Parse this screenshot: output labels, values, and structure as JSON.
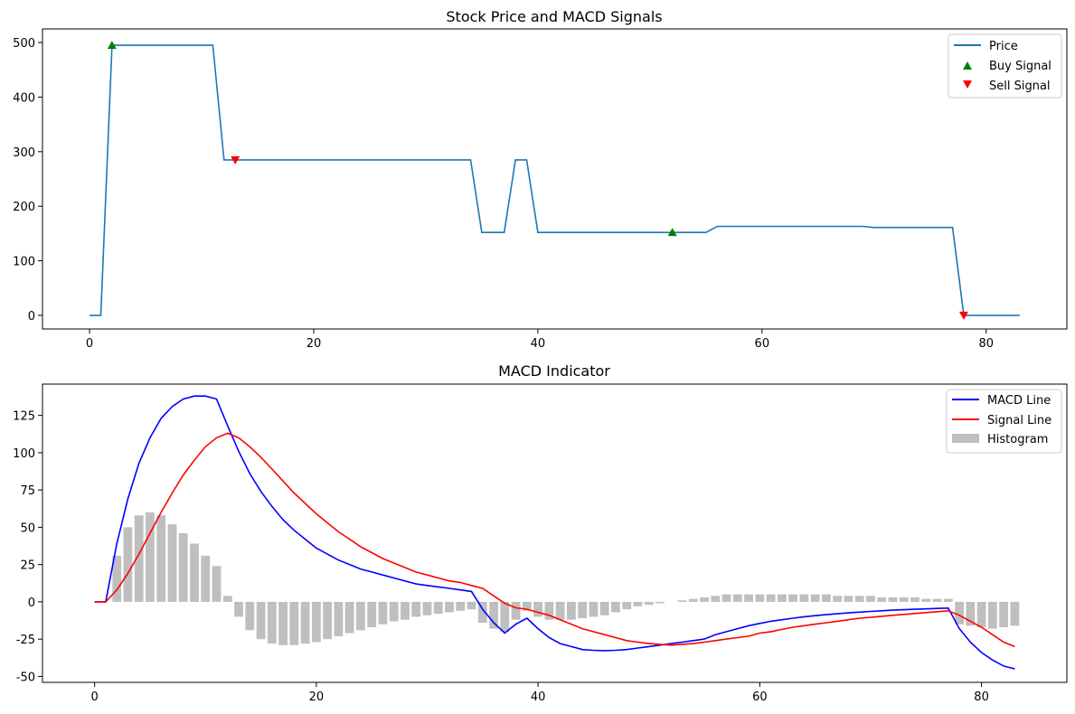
{
  "chart_data": [
    {
      "type": "line",
      "title": "Stock Price and MACD Signals",
      "xlabel": "",
      "ylabel": "",
      "xlim": [
        -4.2,
        87.2
      ],
      "ylim": [
        -25,
        525
      ],
      "xticks": [
        0,
        20,
        40,
        60,
        80
      ],
      "yticks": [
        0,
        100,
        200,
        300,
        400,
        500
      ],
      "grid": false,
      "legend_position": "top-right",
      "legend": [
        "Price",
        "Buy Signal",
        "Sell Signal"
      ],
      "colors": {
        "price": "#1f77b4",
        "buy": "#008000",
        "sell": "#ff0000"
      },
      "series": [
        {
          "name": "Price",
          "x": [
            0,
            1,
            2,
            3,
            4,
            5,
            6,
            7,
            8,
            9,
            10,
            11,
            12,
            13,
            14,
            15,
            16,
            17,
            18,
            19,
            20,
            21,
            22,
            23,
            24,
            25,
            26,
            27,
            28,
            29,
            30,
            31,
            32,
            33,
            34,
            35,
            36,
            37,
            38,
            39,
            40,
            41,
            42,
            43,
            44,
            45,
            46,
            47,
            48,
            49,
            50,
            51,
            52,
            53,
            54,
            55,
            56,
            57,
            58,
            59,
            60,
            61,
            62,
            63,
            64,
            65,
            66,
            67,
            68,
            69,
            70,
            71,
            72,
            73,
            74,
            75,
            76,
            77,
            78,
            79,
            80,
            81,
            82,
            83
          ],
          "y": [
            0,
            0,
            495,
            495,
            495,
            495,
            495,
            495,
            495,
            495,
            495,
            495,
            285,
            285,
            285,
            285,
            285,
            285,
            285,
            285,
            285,
            285,
            285,
            285,
            285,
            285,
            285,
            285,
            285,
            285,
            285,
            285,
            285,
            285,
            285,
            152,
            152,
            152,
            285,
            285,
            152,
            152,
            152,
            152,
            152,
            152,
            152,
            152,
            152,
            152,
            152,
            152,
            152,
            152,
            152,
            152,
            163,
            163,
            163,
            163,
            163,
            163,
            163,
            163,
            163,
            163,
            163,
            163,
            163,
            163,
            161,
            161,
            161,
            161,
            161,
            161,
            161,
            161,
            0,
            0,
            0,
            0,
            0,
            0
          ]
        }
      ],
      "signals": {
        "buy": {
          "name": "Buy Signal",
          "x": [
            2,
            52
          ],
          "y": [
            495,
            152
          ]
        },
        "sell": {
          "name": "Sell Signal",
          "x": [
            13,
            78
          ],
          "y": [
            285,
            0
          ]
        }
      }
    },
    {
      "type": "line",
      "title": "MACD Indicator",
      "xlabel": "",
      "ylabel": "",
      "xlim": [
        -4.7,
        87.7
      ],
      "ylim": [
        -54,
        146
      ],
      "xticks": [
        0,
        20,
        40,
        60,
        80
      ],
      "yticks": [
        -50,
        -25,
        0,
        25,
        50,
        75,
        100,
        125
      ],
      "grid": false,
      "legend_position": "top-right",
      "legend": [
        "MACD Line",
        "Signal Line",
        "Histogram"
      ],
      "colors": {
        "macd": "#0000ff",
        "signal": "#ff0000",
        "histogram": "#bfbfbf"
      },
      "x": [
        0,
        1,
        2,
        3,
        4,
        5,
        6,
        7,
        8,
        9,
        10,
        11,
        12,
        13,
        14,
        15,
        16,
        17,
        18,
        19,
        20,
        21,
        22,
        23,
        24,
        25,
        26,
        27,
        28,
        29,
        30,
        31,
        32,
        33,
        34,
        35,
        36,
        37,
        38,
        39,
        40,
        41,
        42,
        43,
        44,
        45,
        46,
        47,
        48,
        49,
        50,
        51,
        52,
        53,
        54,
        55,
        56,
        57,
        58,
        59,
        60,
        61,
        62,
        63,
        64,
        65,
        66,
        67,
        68,
        69,
        70,
        71,
        72,
        73,
        74,
        75,
        76,
        77,
        78,
        79,
        80,
        81,
        82,
        83
      ],
      "series": [
        {
          "name": "MACD Line",
          "values": [
            0,
            0,
            39,
            69,
            93,
            110,
            123,
            131,
            136,
            138,
            138,
            136,
            118,
            101,
            86,
            74,
            64,
            55,
            48,
            42,
            36,
            32,
            28,
            25,
            22,
            20,
            18,
            16,
            14,
            12,
            11,
            10,
            9,
            8,
            7,
            -5,
            -14,
            -21,
            -15,
            -11,
            -18,
            -24,
            -28,
            -30,
            -32,
            -32.5,
            -32.7,
            -32.5,
            -32,
            -31,
            -30,
            -29,
            -28,
            -27,
            -26,
            -25,
            -22,
            -20,
            -18,
            -16,
            -14.5,
            -13,
            -12,
            -11,
            -10,
            -9.3,
            -8.6,
            -8,
            -7.4,
            -6.9,
            -6.4,
            -6,
            -5.6,
            -5.3,
            -5,
            -4.7,
            -4.4,
            -4.2,
            -18,
            -27,
            -34,
            -39,
            -43,
            -45
          ]
        },
        {
          "name": "Signal Line",
          "values": [
            0,
            0,
            8,
            19,
            32,
            46,
            60,
            73,
            85,
            95,
            104,
            110,
            113,
            110,
            104,
            97,
            89,
            81,
            73,
            66,
            59,
            53,
            47,
            42,
            37,
            33,
            29,
            26,
            23,
            20,
            18,
            16,
            14,
            13,
            11,
            9,
            4,
            -1,
            -4,
            -5,
            -7,
            -9,
            -12,
            -15,
            -18,
            -20,
            -22,
            -24,
            -26,
            -27,
            -28,
            -28.5,
            -29,
            -28.5,
            -28,
            -27,
            -26,
            -25,
            -24,
            -23,
            -21,
            -20,
            -18.5,
            -17,
            -16,
            -15,
            -14,
            -13,
            -12,
            -11,
            -10.4,
            -9.7,
            -9,
            -8.4,
            -7.8,
            -7.2,
            -6.6,
            -6,
            -9,
            -13,
            -17,
            -22,
            -27,
            -30
          ]
        },
        {
          "name": "Histogram",
          "type": "bar",
          "values": [
            0,
            0,
            31,
            50,
            58,
            60,
            58,
            52,
            46,
            39,
            31,
            24,
            4,
            -10,
            -19,
            -25,
            -28,
            -29,
            -29,
            -28,
            -27,
            -25,
            -23,
            -21,
            -19,
            -17,
            -15,
            -13,
            -12,
            -10,
            -9,
            -8,
            -7,
            -6,
            -5,
            -14,
            -18,
            -20,
            -12,
            -6,
            -10,
            -12,
            -12,
            -12,
            -11,
            -10,
            -9,
            -7,
            -5,
            -3,
            -2,
            -1,
            0,
            1,
            2,
            3,
            4,
            5,
            5,
            5,
            5,
            5,
            5,
            5,
            5,
            5,
            5,
            4,
            4,
            4,
            4,
            3,
            3,
            3,
            3,
            2,
            2,
            2,
            -15,
            -16,
            -17,
            -18,
            -17,
            -16
          ]
        }
      ]
    }
  ]
}
